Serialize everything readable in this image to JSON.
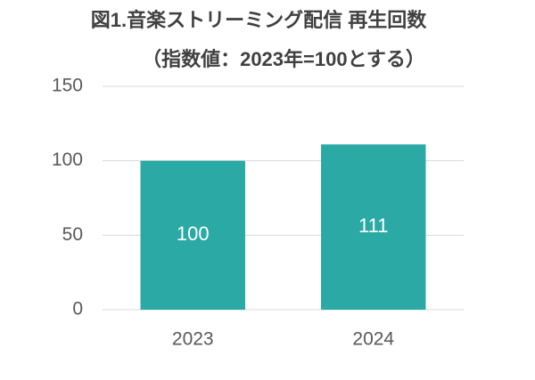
{
  "chart_data": {
    "type": "bar",
    "title": "図1.音楽ストリーミング配信 再生回数",
    "subtitle": "（指数値：2023年=100とする）",
    "categories": [
      "2023",
      "2024"
    ],
    "values": [
      100,
      111
    ],
    "color": "#2aa9a5",
    "ylim": [
      0,
      150
    ],
    "yticks": [
      0,
      50,
      100,
      150
    ],
    "grid": true
  }
}
